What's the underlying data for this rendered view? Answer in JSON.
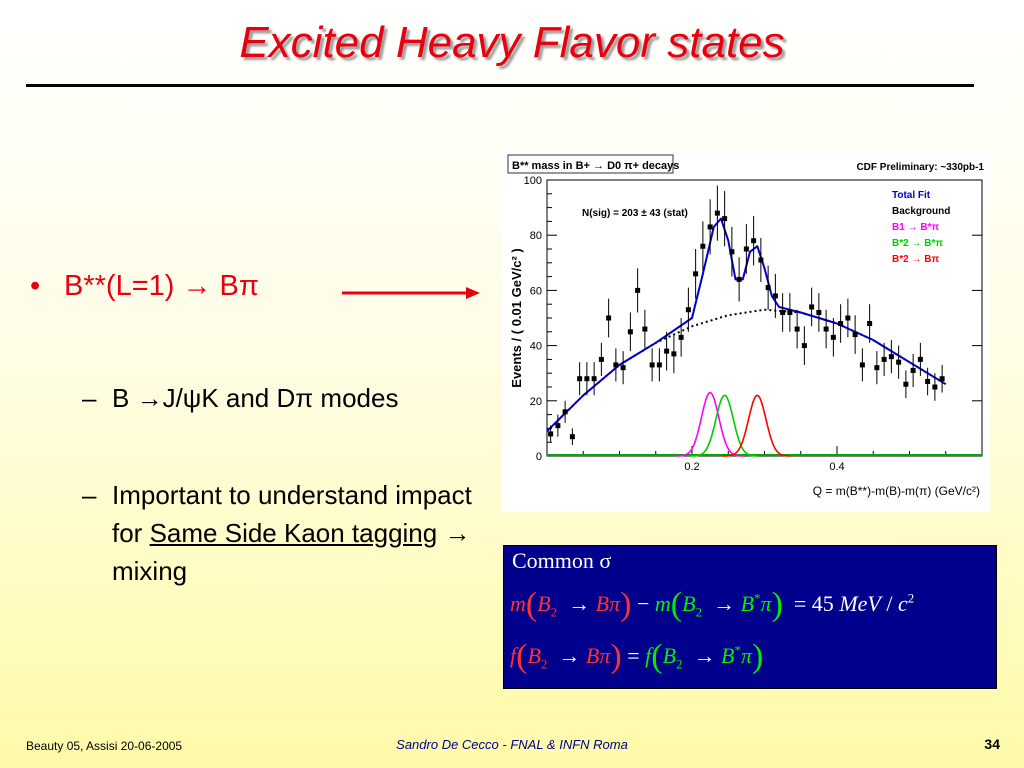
{
  "slide": {
    "title": "Excited Heavy Flavor states",
    "bullet_main": "B**(L=1) → Bπ",
    "sub1": "B →J/ψK and Dπ modes",
    "sub2_pre": "Important to understand impact for ",
    "sub2_link1": "Same Side Kaon tagging",
    "sub2_post": " → mixing"
  },
  "formula": {
    "common": "Common σ",
    "line1": "m(B₂ → Bπ) − m(B₂ → B*π) = 45 MeV / c²",
    "line2": "f (B₂ → Bπ) = f (B₂ → B*π)"
  },
  "footer": {
    "left": "Beauty 05, Assisi 20-06-2005",
    "center": "Sandro De Cecco - FNAL & INFN Roma",
    "page": "34"
  },
  "chart_data": {
    "type": "scatter",
    "title": "B** mass in B+ → D0 π+ decays",
    "subtitle": "CDF Preliminary: ~330pb-1",
    "annotation": "N(sig) = 203 ± 43 (stat)",
    "xlabel": "Q = m(B**)-m(B)-m(π)   (GeV/c²)",
    "ylabel": "Events / ( 0.01 GeV/c² )",
    "xlim": [
      0.0,
      0.6
    ],
    "ylim": [
      0,
      100
    ],
    "xticks": [
      0.2,
      0.4
    ],
    "yticks": [
      0,
      20,
      40,
      60,
      80,
      100
    ],
    "legend": {
      "placement": "top-right",
      "entries": [
        {
          "label": "Total Fit",
          "color": "#0000cc"
        },
        {
          "label": "Background",
          "color": "#000000"
        },
        {
          "label": "B1 → B*π",
          "color": "#ff00ff"
        },
        {
          "label": "B*2 → B*π",
          "color": "#00cc00"
        },
        {
          "label": "B*2 → Bπ",
          "color": "#ff0000"
        }
      ]
    },
    "points": [
      {
        "x": 0.005,
        "y": 8,
        "err": 3
      },
      {
        "x": 0.015,
        "y": 11,
        "err": 4
      },
      {
        "x": 0.025,
        "y": 16,
        "err": 4
      },
      {
        "x": 0.035,
        "y": 7,
        "err": 3
      },
      {
        "x": 0.045,
        "y": 28,
        "err": 6
      },
      {
        "x": 0.055,
        "y": 28,
        "err": 6
      },
      {
        "x": 0.065,
        "y": 28,
        "err": 6
      },
      {
        "x": 0.075,
        "y": 35,
        "err": 6
      },
      {
        "x": 0.085,
        "y": 50,
        "err": 7
      },
      {
        "x": 0.095,
        "y": 33,
        "err": 6
      },
      {
        "x": 0.105,
        "y": 32,
        "err": 6
      },
      {
        "x": 0.115,
        "y": 45,
        "err": 7
      },
      {
        "x": 0.125,
        "y": 60,
        "err": 8
      },
      {
        "x": 0.135,
        "y": 46,
        "err": 7
      },
      {
        "x": 0.145,
        "y": 33,
        "err": 6
      },
      {
        "x": 0.155,
        "y": 33,
        "err": 6
      },
      {
        "x": 0.165,
        "y": 38,
        "err": 7
      },
      {
        "x": 0.175,
        "y": 37,
        "err": 7
      },
      {
        "x": 0.185,
        "y": 43,
        "err": 7
      },
      {
        "x": 0.195,
        "y": 53,
        "err": 8
      },
      {
        "x": 0.205,
        "y": 66,
        "err": 9
      },
      {
        "x": 0.215,
        "y": 76,
        "err": 9
      },
      {
        "x": 0.225,
        "y": 83,
        "err": 10
      },
      {
        "x": 0.235,
        "y": 88,
        "err": 10
      },
      {
        "x": 0.245,
        "y": 86,
        "err": 10
      },
      {
        "x": 0.255,
        "y": 74,
        "err": 9
      },
      {
        "x": 0.265,
        "y": 64,
        "err": 8
      },
      {
        "x": 0.275,
        "y": 75,
        "err": 9
      },
      {
        "x": 0.285,
        "y": 78,
        "err": 9
      },
      {
        "x": 0.295,
        "y": 71,
        "err": 8
      },
      {
        "x": 0.305,
        "y": 61,
        "err": 8
      },
      {
        "x": 0.315,
        "y": 58,
        "err": 8
      },
      {
        "x": 0.325,
        "y": 52,
        "err": 7
      },
      {
        "x": 0.335,
        "y": 52,
        "err": 7
      },
      {
        "x": 0.345,
        "y": 46,
        "err": 7
      },
      {
        "x": 0.355,
        "y": 40,
        "err": 7
      },
      {
        "x": 0.365,
        "y": 54,
        "err": 7
      },
      {
        "x": 0.375,
        "y": 52,
        "err": 7
      },
      {
        "x": 0.385,
        "y": 46,
        "err": 7
      },
      {
        "x": 0.395,
        "y": 43,
        "err": 7
      },
      {
        "x": 0.405,
        "y": 48,
        "err": 7
      },
      {
        "x": 0.415,
        "y": 50,
        "err": 7
      },
      {
        "x": 0.425,
        "y": 44,
        "err": 7
      },
      {
        "x": 0.435,
        "y": 33,
        "err": 6
      },
      {
        "x": 0.445,
        "y": 48,
        "err": 7
      },
      {
        "x": 0.455,
        "y": 32,
        "err": 6
      },
      {
        "x": 0.465,
        "y": 35,
        "err": 6
      },
      {
        "x": 0.475,
        "y": 36,
        "err": 6
      },
      {
        "x": 0.485,
        "y": 34,
        "err": 6
      },
      {
        "x": 0.495,
        "y": 26,
        "err": 5
      },
      {
        "x": 0.505,
        "y": 31,
        "err": 6
      },
      {
        "x": 0.515,
        "y": 35,
        "err": 6
      },
      {
        "x": 0.525,
        "y": 27,
        "err": 5
      },
      {
        "x": 0.535,
        "y": 25,
        "err": 5
      },
      {
        "x": 0.545,
        "y": 28,
        "err": 5
      }
    ],
    "background_curve": [
      [
        0.0,
        9
      ],
      [
        0.05,
        22
      ],
      [
        0.1,
        33
      ],
      [
        0.15,
        41
      ],
      [
        0.2,
        47
      ],
      [
        0.25,
        51
      ],
      [
        0.3,
        53
      ],
      [
        0.35,
        52
      ],
      [
        0.4,
        48
      ],
      [
        0.45,
        42
      ],
      [
        0.5,
        34
      ],
      [
        0.55,
        26
      ]
    ],
    "total_fit_curve": [
      [
        0.0,
        9
      ],
      [
        0.05,
        22
      ],
      [
        0.1,
        33
      ],
      [
        0.15,
        41
      ],
      [
        0.2,
        50
      ],
      [
        0.215,
        66
      ],
      [
        0.23,
        83
      ],
      [
        0.24,
        86
      ],
      [
        0.25,
        78
      ],
      [
        0.26,
        64
      ],
      [
        0.27,
        64
      ],
      [
        0.28,
        74
      ],
      [
        0.29,
        76
      ],
      [
        0.3,
        68
      ],
      [
        0.31,
        58
      ],
      [
        0.32,
        54
      ],
      [
        0.35,
        52
      ],
      [
        0.4,
        48
      ],
      [
        0.45,
        42
      ],
      [
        0.5,
        34
      ],
      [
        0.55,
        26
      ]
    ],
    "signal_curves": [
      {
        "name": "B1 → B*π",
        "color": "#ff00ff",
        "mean": 0.225,
        "sigma": 0.012,
        "peak": 23
      },
      {
        "name": "B*2 → B*π",
        "color": "#00cc00",
        "mean": 0.245,
        "sigma": 0.012,
        "peak": 22
      },
      {
        "name": "B*2 → Bπ",
        "color": "#ff0000",
        "mean": 0.29,
        "sigma": 0.012,
        "peak": 22
      }
    ]
  }
}
